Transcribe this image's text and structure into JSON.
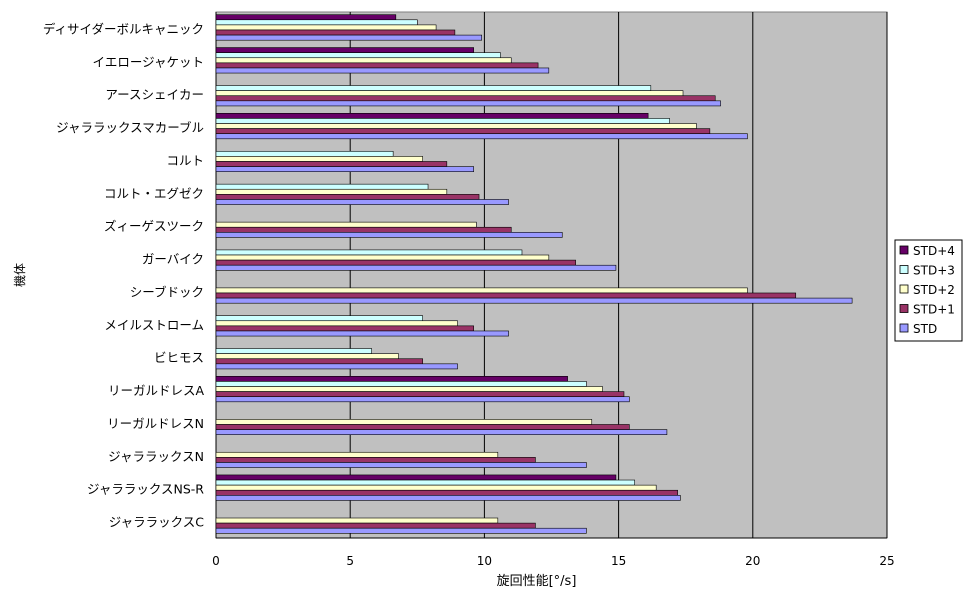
{
  "chart_data": {
    "type": "bar",
    "orientation": "horizontal",
    "title": "",
    "xlabel": "旋回性能[°/s]",
    "ylabel": "機体",
    "xlim": [
      0,
      25
    ],
    "xticks": [
      0,
      5,
      10,
      15,
      20,
      25
    ],
    "grid": true,
    "legend_position": "right",
    "categories": [
      "ディサイダーボルキャニック",
      "イエロージャケット",
      "アースシェイカー",
      "ジャララックスマカーブル",
      "コルト",
      "コルト・エグゼク",
      "ズィーゲスツーク",
      "ガーバイク",
      "シーブドック",
      "メイルストローム",
      "ビヒモス",
      "リーガルドレスA",
      "リーガルドレスN",
      "ジャララックスN",
      "ジャララックスNS-R",
      "ジャララックスC"
    ],
    "series": [
      {
        "name": "STD+4",
        "color": "#660066",
        "values": [
          6.7,
          9.6,
          null,
          16.1,
          null,
          null,
          null,
          null,
          null,
          null,
          null,
          13.1,
          null,
          null,
          14.9,
          null
        ]
      },
      {
        "name": "STD+3",
        "color": "#ccffff",
        "values": [
          7.5,
          10.6,
          16.2,
          16.9,
          6.6,
          7.9,
          null,
          11.4,
          null,
          7.7,
          5.8,
          13.8,
          null,
          null,
          15.6,
          null
        ]
      },
      {
        "name": "STD+2",
        "color": "#ffffcc",
        "values": [
          8.2,
          11.0,
          17.4,
          17.9,
          7.7,
          8.6,
          9.7,
          12.4,
          19.8,
          9.0,
          6.8,
          14.4,
          14.0,
          10.5,
          16.4,
          10.5
        ]
      },
      {
        "name": "STD+1",
        "color": "#993366",
        "values": [
          8.9,
          12.0,
          18.6,
          18.4,
          8.6,
          9.8,
          11.0,
          13.4,
          21.6,
          9.6,
          7.7,
          15.2,
          15.4,
          11.9,
          17.2,
          11.9
        ]
      },
      {
        "name": "STD",
        "color": "#9999ff",
        "values": [
          9.9,
          12.4,
          18.8,
          19.8,
          9.6,
          10.9,
          12.9,
          14.9,
          23.7,
          10.9,
          9.0,
          15.4,
          16.8,
          13.8,
          17.3,
          13.8
        ]
      }
    ],
    "colors": {
      "plot_background": "#c0c0c0",
      "gridline": "#000000",
      "bar_stroke": "#000000"
    }
  }
}
